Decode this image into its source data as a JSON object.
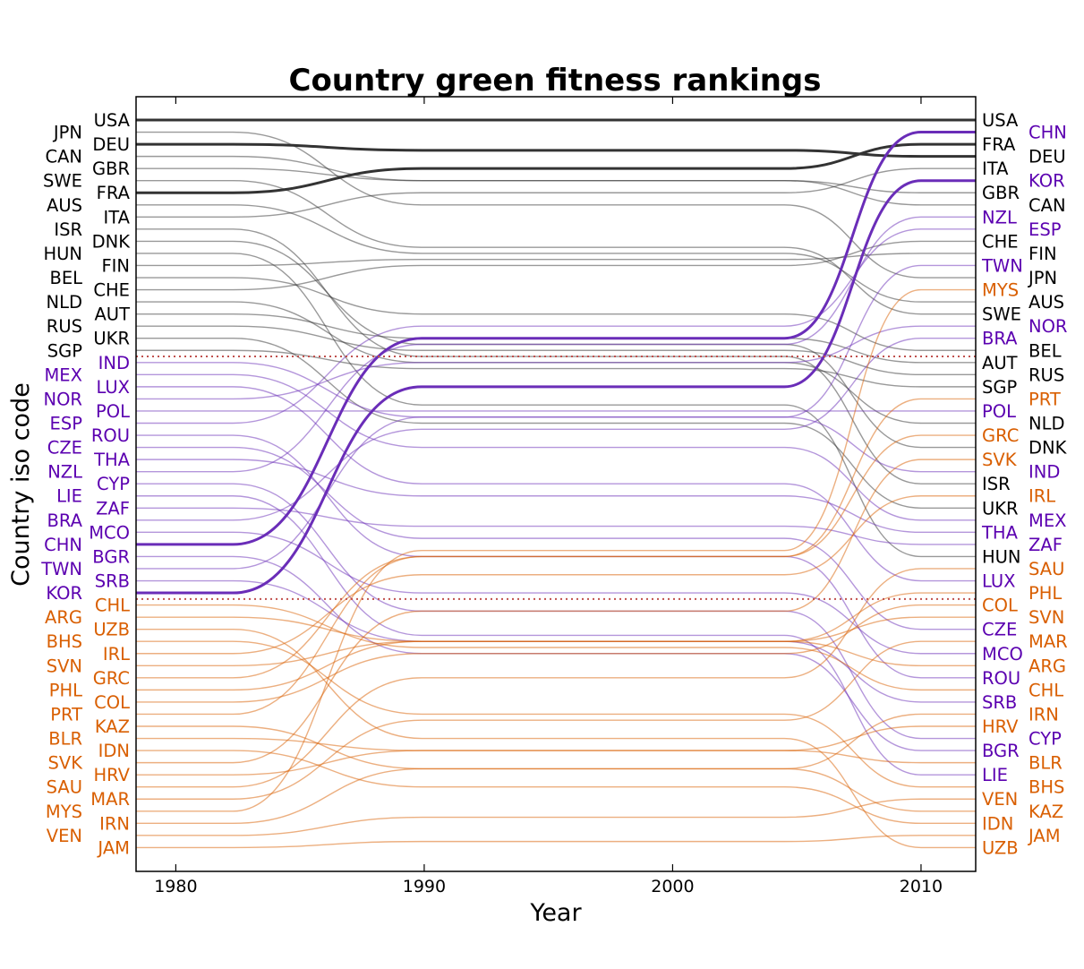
{
  "colors": {
    "group1": "#000000",
    "group2": "#5b00b0",
    "group3": "#d95f02",
    "line1": "#333333",
    "line2": "#6a2db8",
    "line3": "#d95f02",
    "separator": "#c0504d"
  },
  "chart_data": {
    "type": "line",
    "title": "Country green fitness rankings",
    "xlabel": "Year",
    "ylabel": "Country iso code",
    "x": [
      1980,
      1990,
      2000,
      2010
    ],
    "xticks": [
      "1980",
      "1990",
      "2000",
      "2010"
    ],
    "xlim": [
      1978.4,
      2012.2
    ],
    "rankings": {
      "1980": [
        "USA",
        "JPN",
        "DEU",
        "CAN",
        "GBR",
        "SWE",
        "FRA",
        "AUS",
        "ITA",
        "ISR",
        "DNK",
        "HUN",
        "FIN",
        "BEL",
        "CHE",
        "NLD",
        "AUT",
        "RUS",
        "UKR",
        "SGP",
        "IND",
        "MEX",
        "LUX",
        "NOR",
        "POL",
        "ESP",
        "ROU",
        "CZE",
        "THA",
        "NZL",
        "CYP",
        "LIE",
        "ZAF",
        "BRA",
        "MCO",
        "CHN",
        "BGR",
        "TWN",
        "SRB",
        "KOR",
        "CHL",
        "ARG",
        "UZB",
        "BHS",
        "IRL",
        "SVN",
        "GRC",
        "PHL",
        "COL",
        "PRT",
        "KAZ",
        "BLR",
        "IDN",
        "SVK",
        "HRV",
        "SAU",
        "MAR",
        "MYS",
        "IRN",
        "VEN",
        "JAM"
      ],
      "2010": [
        "USA",
        "CHN",
        "FRA",
        "DEU",
        "ITA",
        "KOR",
        "GBR",
        "CAN",
        "NZL",
        "ESP",
        "CHE",
        "FIN",
        "TWN",
        "JPN",
        "MYS",
        "AUS",
        "SWE",
        "NOR",
        "BRA",
        "BEL",
        "AUT",
        "RUS",
        "SGP",
        "PRT",
        "POL",
        "NLD",
        "GRC",
        "DNK",
        "SVK",
        "IND",
        "ISR",
        "IRL",
        "UKR",
        "MEX",
        "THA",
        "ZAF",
        "HUN",
        "SAU",
        "LUX",
        "PHL",
        "COL",
        "SVN",
        "CZE",
        "MAR",
        "MCO",
        "ARG",
        "ROU",
        "CHL",
        "SRB",
        "IRN",
        "HRV",
        "CYP",
        "BGR",
        "BLR",
        "LIE",
        "BHS",
        "VEN",
        "KAZ",
        "IDN",
        "JAM",
        "UZB"
      ]
    },
    "left_groups": {
      "group1": [
        "USA",
        "JPN",
        "DEU",
        "CAN",
        "GBR",
        "SWE",
        "FRA",
        "AUS",
        "ITA",
        "ISR",
        "DNK",
        "HUN",
        "FIN",
        "BEL",
        "CHE",
        "NLD",
        "AUT",
        "RUS",
        "UKR",
        "SGP"
      ],
      "group2": [
        "IND",
        "MEX",
        "LUX",
        "NOR",
        "POL",
        "ESP",
        "ROU",
        "CZE",
        "THA",
        "NZL",
        "CYP",
        "LIE",
        "ZAF",
        "BRA",
        "MCO",
        "CHN",
        "BGR",
        "TWN",
        "SRB",
        "KOR"
      ],
      "group3": [
        "CHL",
        "ARG",
        "UZB",
        "BHS",
        "IRL",
        "SVN",
        "GRC",
        "PHL",
        "COL",
        "PRT",
        "KAZ",
        "BLR",
        "IDN",
        "SVK",
        "HRV",
        "SAU",
        "MAR",
        "MYS",
        "IRN",
        "VEN",
        "JAM"
      ]
    },
    "highlighted": [
      "USA",
      "DEU",
      "FRA",
      "CHN",
      "KOR"
    ],
    "separators_after_rank": [
      20,
      40
    ]
  }
}
